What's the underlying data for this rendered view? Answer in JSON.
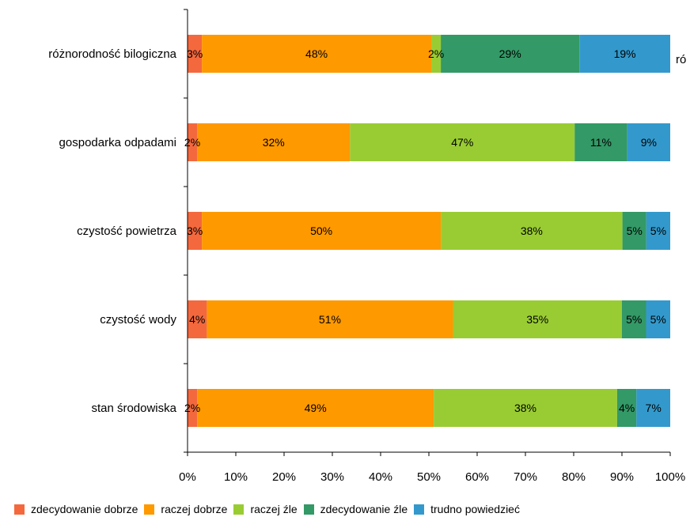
{
  "chart_data": {
    "type": "bar",
    "orientation": "horizontal",
    "stacked": true,
    "percent": true,
    "categories": [
      "różnorodność bilogiczna",
      "gospodarka odpadami",
      "czystość powietrza",
      "czystość wody",
      "stan środowiska"
    ],
    "series": [
      {
        "name": "zdecydowanie dobrze",
        "color": "#f4683d",
        "values": [
          3,
          2,
          3,
          4,
          2
        ],
        "labels": [
          "3%",
          "2%",
          "3%",
          "4%",
          "2%"
        ]
      },
      {
        "name": "raczej dobrze",
        "color": "#ff9900",
        "values": [
          48,
          32,
          50,
          51,
          49
        ],
        "labels": [
          "48%",
          "32%",
          "50%",
          "51%",
          "49%"
        ]
      },
      {
        "name": "raczej źle",
        "color": "#99cc33",
        "values": [
          2,
          47,
          38,
          35,
          38
        ],
        "labels": [
          "2%",
          "47%",
          "38%",
          "35%",
          "38%"
        ]
      },
      {
        "name": "zdecydowanie źle",
        "color": "#339966",
        "values": [
          29,
          11,
          5,
          5,
          4
        ],
        "labels": [
          "29%",
          "11%",
          "5%",
          "5%",
          "4%"
        ]
      },
      {
        "name": "trudno powiedzieć",
        "color": "#3399cc",
        "values": [
          19,
          9,
          5,
          5,
          7
        ],
        "labels": [
          "19%",
          "9%",
          "5%",
          "5%",
          "7%"
        ]
      }
    ],
    "xlim": [
      0,
      100
    ],
    "xticks": [
      "0%",
      "10%",
      "20%",
      "30%",
      "40%",
      "50%",
      "60%",
      "70%",
      "80%",
      "90%",
      "100%"
    ],
    "legend_position": "bottom",
    "grid": false,
    "stray_label": "ró"
  }
}
